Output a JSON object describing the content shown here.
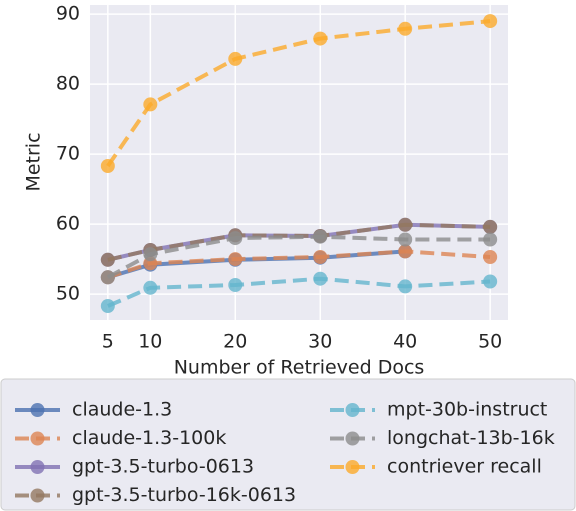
{
  "chart_data": {
    "type": "line",
    "xlabel": "Number of Retrieved Docs",
    "ylabel": "Metric",
    "x": [
      5,
      10,
      20,
      30,
      40,
      50
    ],
    "series": [
      {
        "name": "claude-1.3",
        "color": "#4c72b0",
        "dashed": false,
        "values": [
          52.4,
          54.2,
          54.9,
          55.2,
          56.1,
          null
        ]
      },
      {
        "name": "claude-1.3-100k",
        "color": "#dd8452",
        "dashed": true,
        "values": [
          52.4,
          54.4,
          55.0,
          55.3,
          56.1,
          55.3
        ]
      },
      {
        "name": "gpt-3.5-turbo-0613",
        "color": "#8172b3",
        "dashed": false,
        "values": [
          54.9,
          56.3,
          58.4,
          58.3,
          59.9,
          59.6
        ]
      },
      {
        "name": "gpt-3.5-turbo-16k-0613",
        "color": "#937860",
        "dashed": true,
        "values": [
          54.9,
          56.3,
          58.4,
          58.3,
          59.9,
          59.6
        ]
      },
      {
        "name": "mpt-30b-instruct",
        "color": "#64b5cd",
        "dashed": true,
        "values": [
          48.3,
          50.9,
          51.3,
          52.2,
          51.1,
          51.8
        ]
      },
      {
        "name": "longchat-13b-16k",
        "color": "#8c8c8c",
        "dashed": true,
        "values": [
          52.4,
          55.7,
          58.0,
          58.2,
          57.8,
          57.8
        ]
      },
      {
        "name": "contriever recall",
        "color": "#fbaa2b",
        "dashed": true,
        "values": [
          68.3,
          77.1,
          83.6,
          86.5,
          87.9,
          89.0
        ]
      }
    ],
    "xlim": [
      2.9,
      52.1
    ],
    "xticks": [
      5,
      10,
      20,
      30,
      40,
      50
    ],
    "ylim": [
      46.3,
      91.3
    ],
    "yticks": [
      50,
      60,
      70,
      80,
      90
    ],
    "grid": true,
    "legend": "below"
  }
}
